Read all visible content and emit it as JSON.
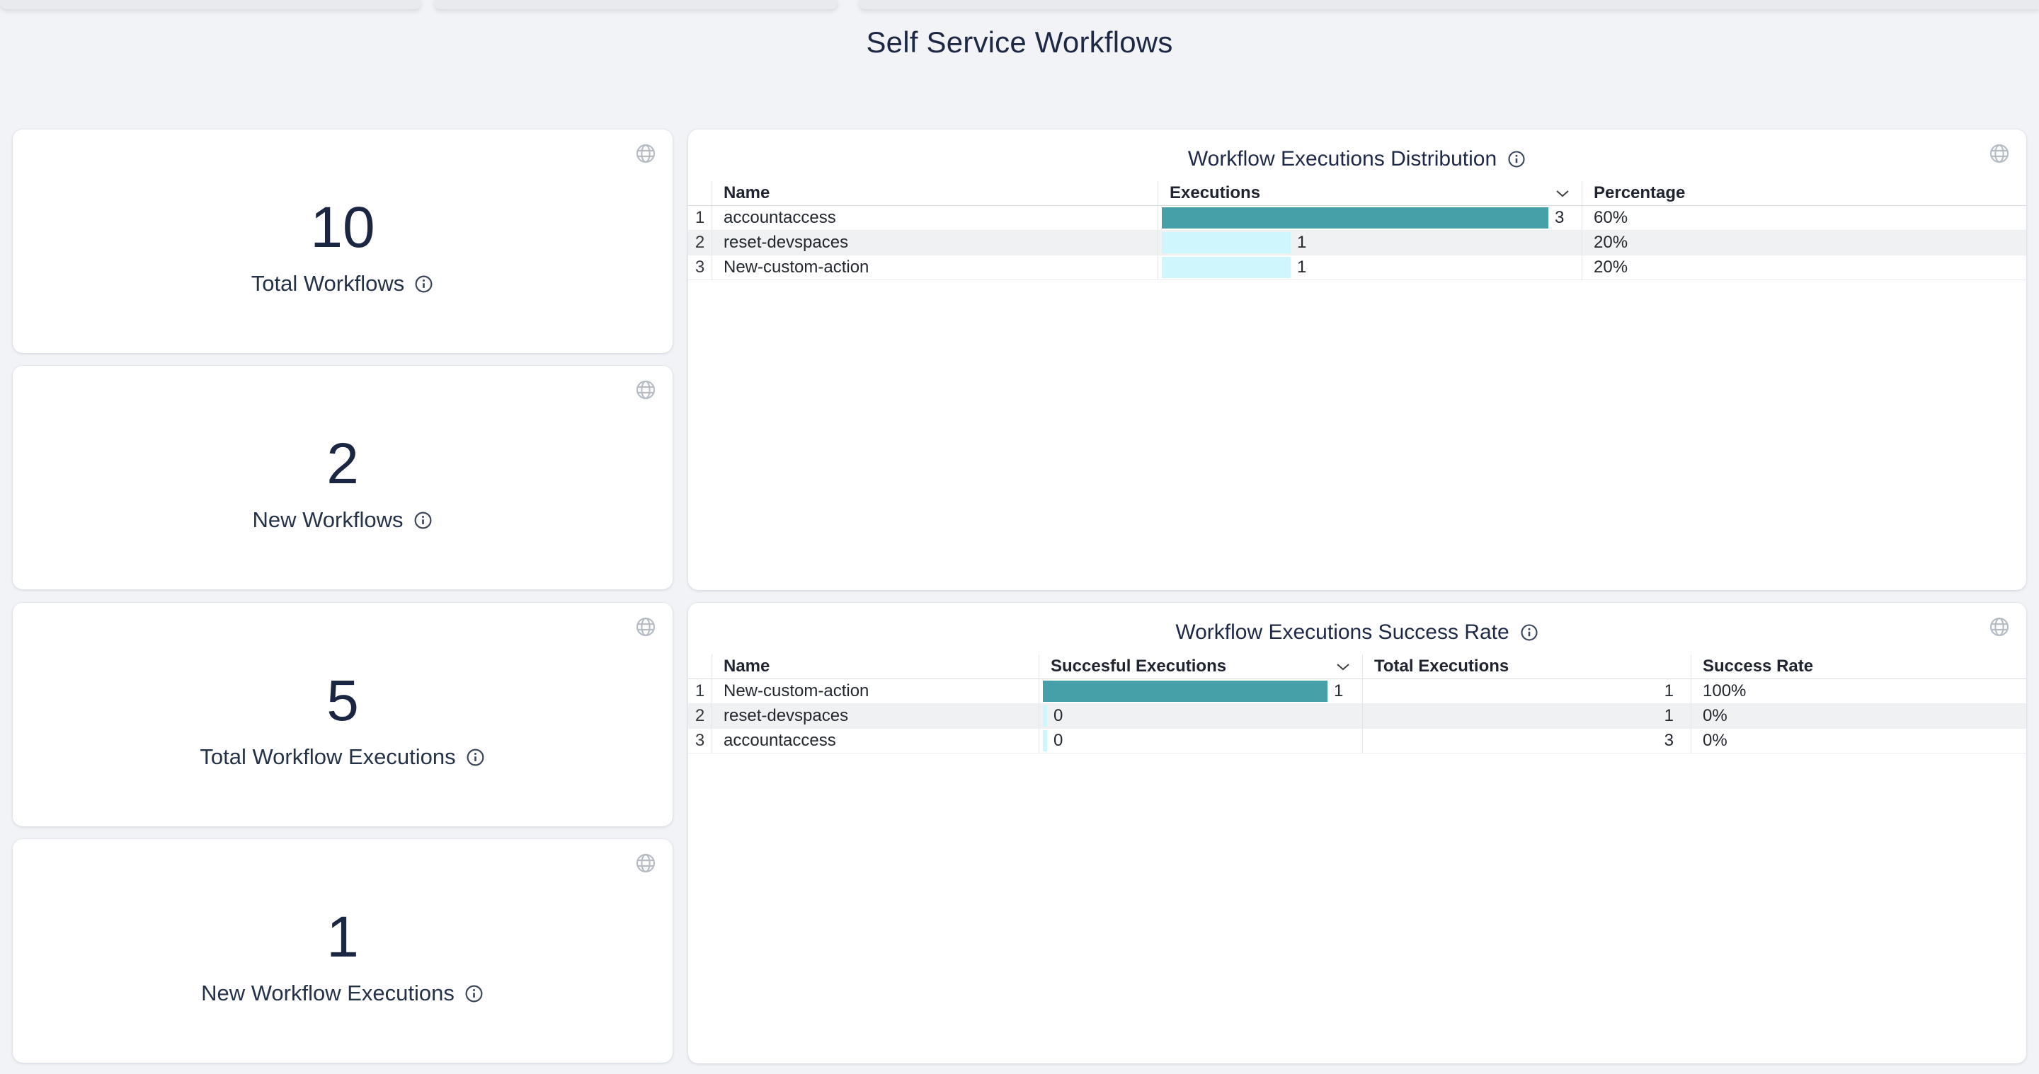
{
  "page": {
    "title": "Self Service Workflows"
  },
  "colors": {
    "background": "#f1f3f6",
    "card": "#ffffff",
    "bar_strong": "#46a0a8",
    "bar_light": "#cff6fc",
    "stripe": "#f0f1f2",
    "navy_text": "#1a2642",
    "icon_gray": "#b6bcc4"
  },
  "stat_cards": [
    {
      "value": "10",
      "label": "Total Workflows"
    },
    {
      "value": "2",
      "label": "New Workflows"
    },
    {
      "value": "5",
      "label": "Total Workflow Executions"
    },
    {
      "value": "1",
      "label": "New Workflow Executions"
    }
  ],
  "tables": [
    {
      "title": "Workflow Executions Distribution",
      "columns": [
        "Name",
        "Executions",
        "Percentage"
      ],
      "sorted_column": "Executions",
      "rows": [
        {
          "index": "1",
          "name": "accountaccess",
          "bar_value": 3,
          "bar_label": "3",
          "percentage": "60%"
        },
        {
          "index": "2",
          "name": "reset-devspaces",
          "bar_value": 1,
          "bar_label": "1",
          "percentage": "20%"
        },
        {
          "index": "3",
          "name": "New-custom-action",
          "bar_value": 1,
          "bar_label": "1",
          "percentage": "20%"
        }
      ]
    },
    {
      "title": "Workflow Executions Success Rate",
      "columns": [
        "Name",
        "Succesful Executions",
        "Total Executions",
        "Success Rate"
      ],
      "sorted_column": "Succesful Executions",
      "rows": [
        {
          "index": "1",
          "name": "New-custom-action",
          "bar_value": 1,
          "bar_label": "1",
          "total": "1",
          "rate": "100%"
        },
        {
          "index": "2",
          "name": "reset-devspaces",
          "bar_value": 0,
          "bar_label": "0",
          "total": "1",
          "rate": "0%"
        },
        {
          "index": "3",
          "name": "accountaccess",
          "bar_value": 0,
          "bar_label": "0",
          "total": "3",
          "rate": "0%"
        }
      ]
    }
  ],
  "chart_data": [
    {
      "type": "table",
      "title": "Workflow Executions Distribution",
      "categories": [
        "accountaccess",
        "reset-devspaces",
        "New-custom-action"
      ],
      "series": [
        {
          "name": "Executions",
          "values": [
            3,
            1,
            1
          ]
        },
        {
          "name": "Percentage",
          "values": [
            "60%",
            "20%",
            "20%"
          ]
        }
      ],
      "legend_position": "none",
      "grid": false
    },
    {
      "type": "table",
      "title": "Workflow Executions Success Rate",
      "categories": [
        "New-custom-action",
        "reset-devspaces",
        "accountaccess"
      ],
      "series": [
        {
          "name": "Succesful Executions",
          "values": [
            1,
            0,
            0
          ]
        },
        {
          "name": "Total Executions",
          "values": [
            1,
            1,
            3
          ]
        },
        {
          "name": "Success Rate",
          "values": [
            "100%",
            "0%",
            "0%"
          ]
        }
      ],
      "legend_position": "none",
      "grid": false
    }
  ]
}
